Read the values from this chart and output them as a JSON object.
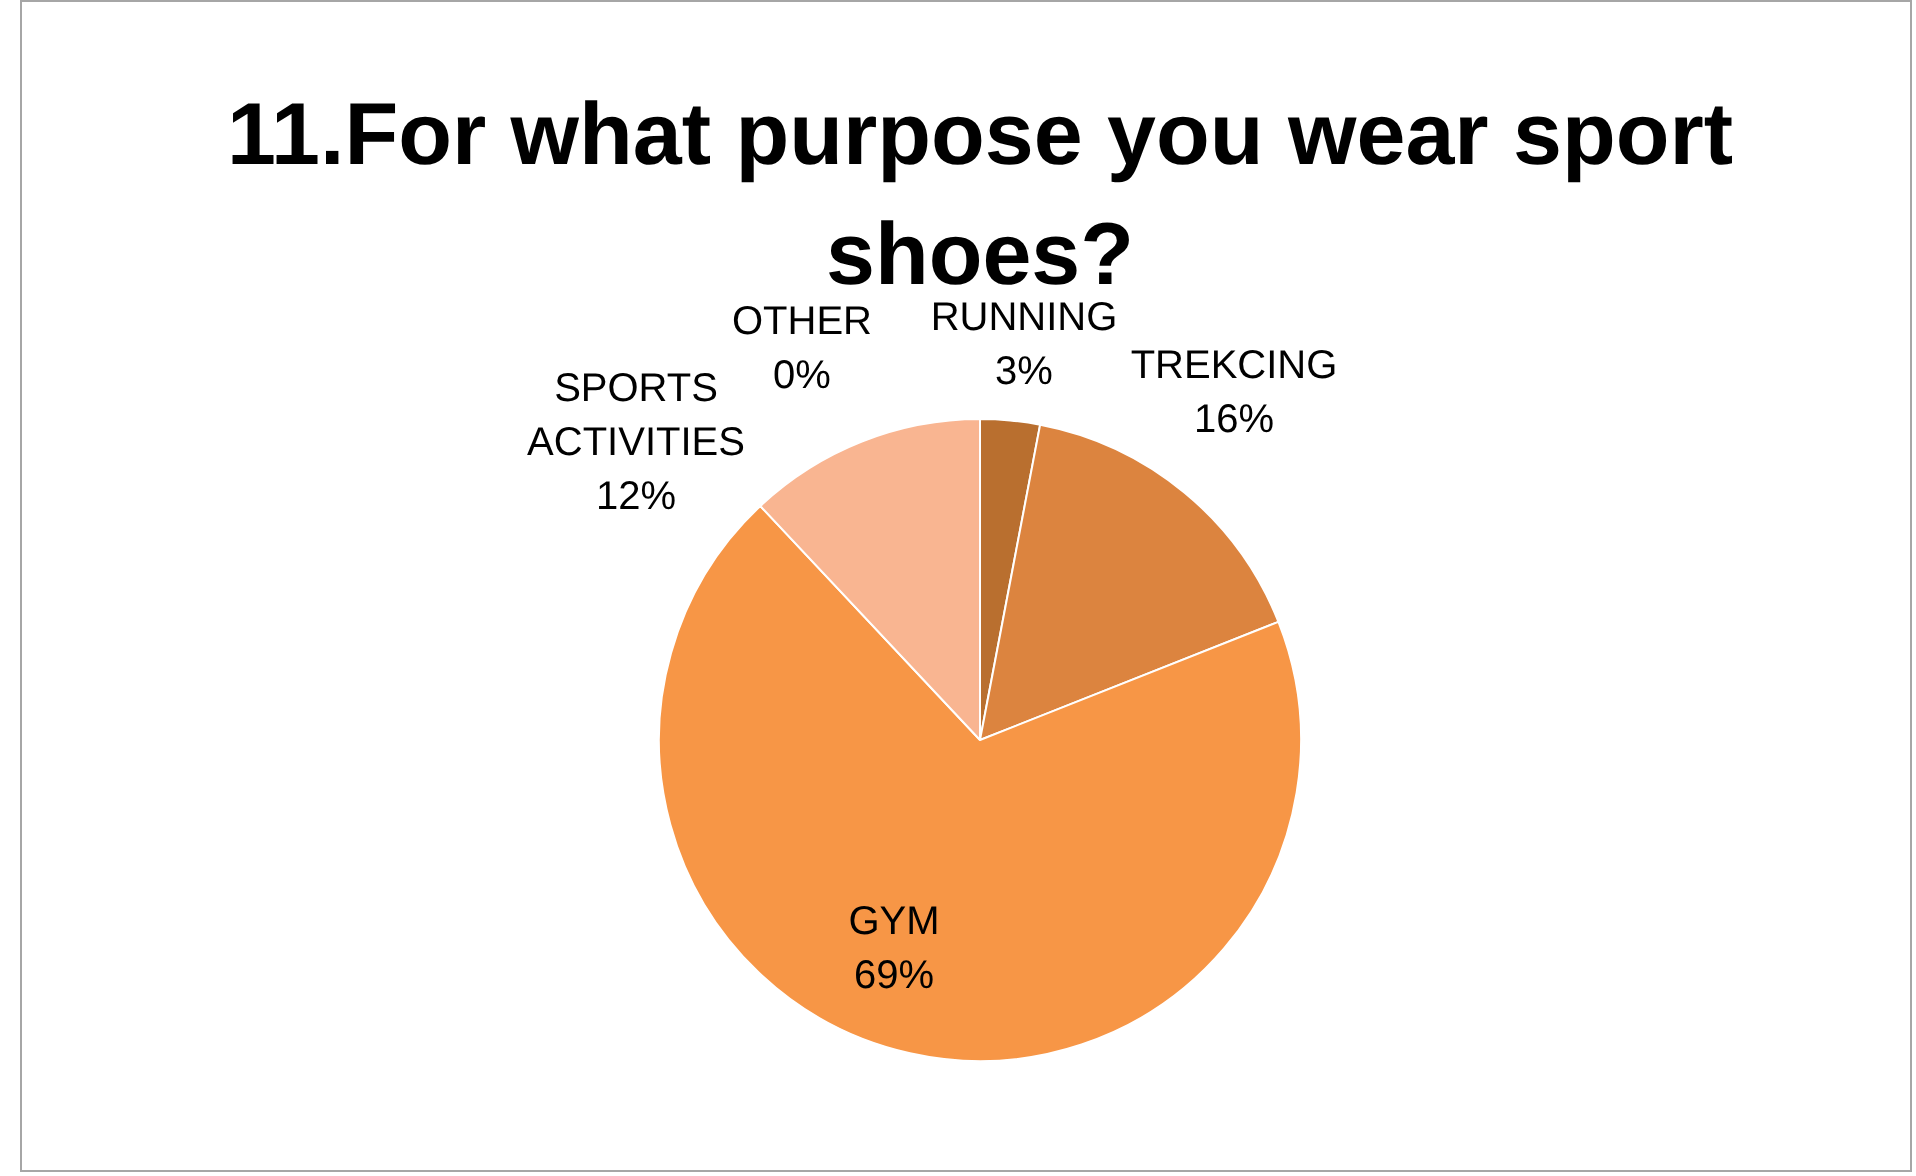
{
  "chart_data": {
    "type": "pie",
    "title": "11.For what purpose you wear sport shoes?",
    "categories": [
      "RUNNING",
      "TREKCING",
      "GYM",
      "SPORTS ACTIVITIES",
      "OTHER"
    ],
    "values": [
      3,
      16,
      69,
      12,
      0
    ],
    "value_labels": [
      "3%",
      "16%",
      "69%",
      "12%",
      "0%"
    ],
    "colors": [
      "#b96f2f",
      "#dc843f",
      "#f79646",
      "#f9b591",
      "#fbd0b5"
    ],
    "legend": false
  }
}
